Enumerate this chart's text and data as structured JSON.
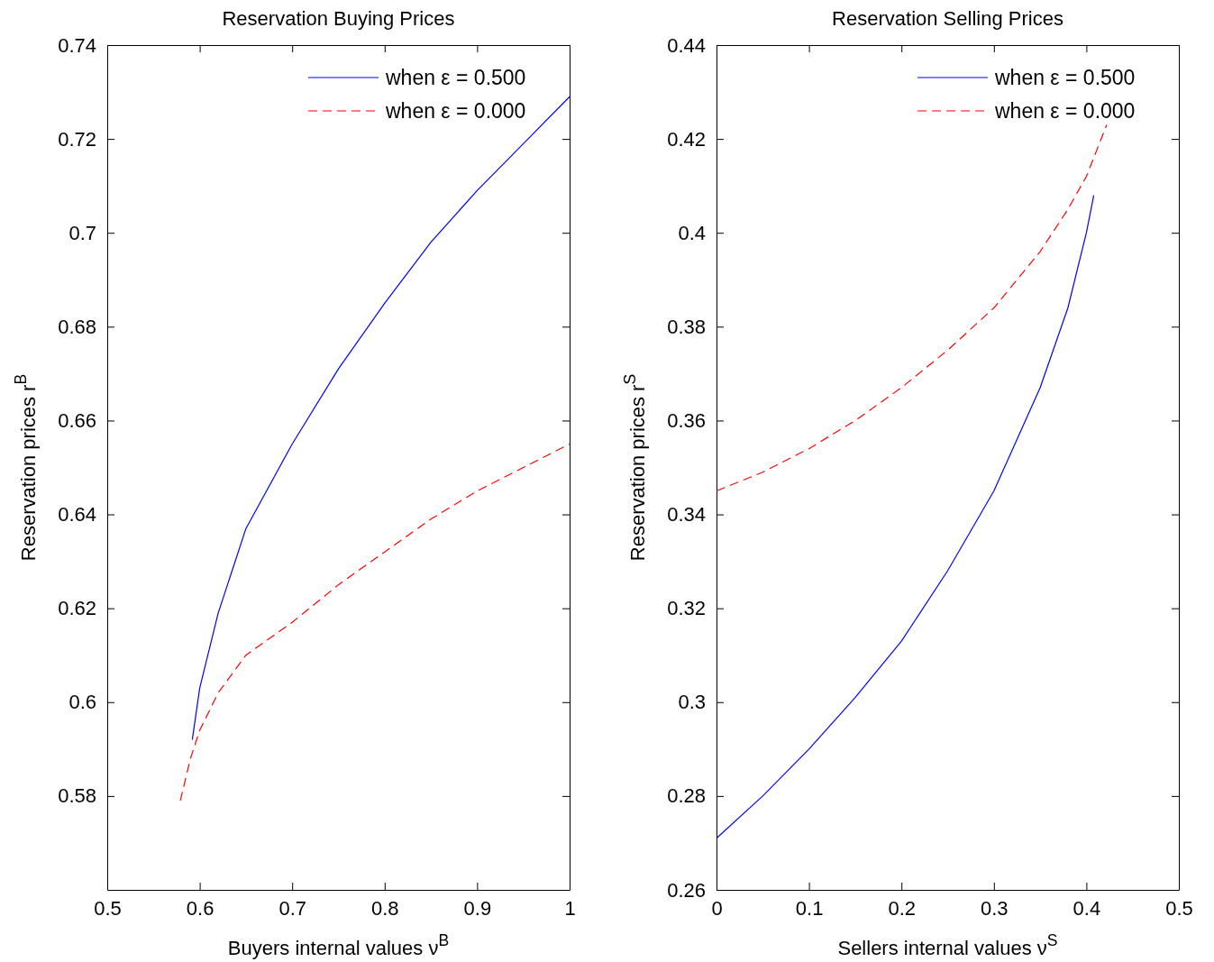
{
  "chart_data": [
    {
      "type": "line",
      "title": "Reservation Buying Prices",
      "xlabel": "Buyers internal values ν$^{B}$",
      "ylabel": "Reservation prices r$^{B}$",
      "xlim": [
        0.5,
        1
      ],
      "xticks": [
        0.5,
        0.6,
        0.7,
        0.8,
        0.9,
        1
      ],
      "ylim": [
        0.56,
        0.74
      ],
      "yticks": [
        0.58,
        0.6,
        0.62,
        0.64,
        0.66,
        0.68,
        0.7,
        0.72,
        0.74
      ],
      "grid": false,
      "legend": "top right",
      "marker": "none",
      "series": [
        {
          "name": "when ε = 0.500",
          "color": "#0000ff",
          "line_style": "solid",
          "x": [
            0.592,
            0.6,
            0.62,
            0.65,
            0.7,
            0.75,
            0.8,
            0.85,
            0.9,
            0.95,
            1.0
          ],
          "values": [
            0.592,
            0.603,
            0.619,
            0.637,
            0.655,
            0.671,
            0.685,
            0.698,
            0.709,
            0.719,
            0.729
          ]
        },
        {
          "name": "when ε = 0.000",
          "color": "#ff0000",
          "line_style": "dashed",
          "x": [
            0.579,
            0.59,
            0.6,
            0.62,
            0.65,
            0.7,
            0.75,
            0.8,
            0.85,
            0.9,
            0.95,
            1.0
          ],
          "values": [
            0.579,
            0.588,
            0.594,
            0.602,
            0.61,
            0.617,
            0.625,
            0.632,
            0.639,
            0.645,
            0.65,
            0.655
          ]
        }
      ]
    },
    {
      "type": "line",
      "title": "Reservation Selling Prices",
      "xlabel": "Sellers internal values ν$^{S}$",
      "ylabel": "Reservation prices r$^{S}$",
      "xlim": [
        0,
        0.5
      ],
      "xticks": [
        0,
        0.1,
        0.2,
        0.3,
        0.4,
        0.5
      ],
      "ylim": [
        0.26,
        0.44
      ],
      "yticks": [
        0.26,
        0.28,
        0.3,
        0.32,
        0.34,
        0.36,
        0.38,
        0.4,
        0.42,
        0.44
      ],
      "grid": false,
      "legend": "top right",
      "marker": "none",
      "series": [
        {
          "name": "when ε = 0.500",
          "color": "#0000ff",
          "line_style": "solid",
          "x": [
            0,
            0.05,
            0.1,
            0.15,
            0.2,
            0.25,
            0.3,
            0.35,
            0.38,
            0.4,
            0.408
          ],
          "values": [
            0.271,
            0.28,
            0.29,
            0.301,
            0.313,
            0.328,
            0.345,
            0.367,
            0.384,
            0.4,
            0.408
          ]
        },
        {
          "name": "when ε = 0.000",
          "color": "#ff0000",
          "line_style": "dashed",
          "x": [
            0,
            0.05,
            0.1,
            0.15,
            0.2,
            0.25,
            0.3,
            0.35,
            0.38,
            0.4,
            0.422
          ],
          "values": [
            0.345,
            0.349,
            0.354,
            0.36,
            0.367,
            0.375,
            0.384,
            0.396,
            0.405,
            0.412,
            0.423
          ]
        }
      ]
    }
  ]
}
